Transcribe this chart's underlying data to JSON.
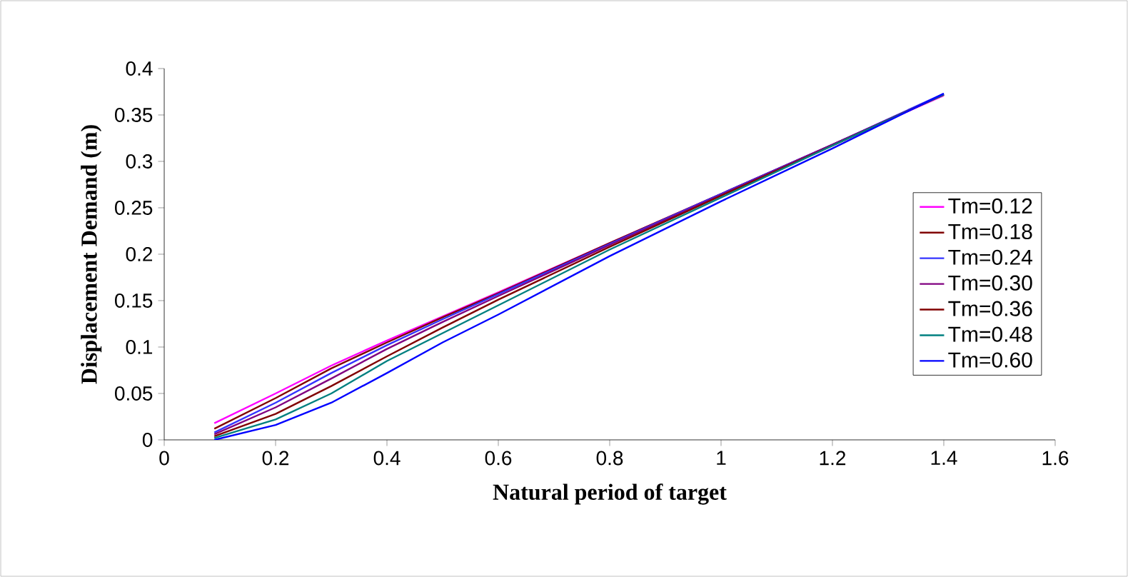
{
  "chart_data": {
    "type": "line",
    "xlabel": "Natural period of target",
    "ylabel": "Displacement Demand (m)",
    "x": [
      0.09,
      0.2,
      0.3,
      0.4,
      0.5,
      0.6,
      0.8,
      1.0,
      1.2,
      1.4
    ],
    "series": [
      {
        "name": "Tm=0.12",
        "color": "#ff00ff",
        "values": [
          0.018,
          0.05,
          0.08,
          0.107,
          0.133,
          0.159,
          0.212,
          0.265,
          0.318,
          0.371
        ]
      },
      {
        "name": "Tm=0.18",
        "color": "#800000",
        "values": [
          0.012,
          0.045,
          0.077,
          0.105,
          0.132,
          0.158,
          0.212,
          0.265,
          0.318,
          0.372
        ]
      },
      {
        "name": "Tm=0.24",
        "color": "#3333ff",
        "values": [
          0.008,
          0.04,
          0.072,
          0.102,
          0.13,
          0.157,
          0.211,
          0.265,
          0.318,
          0.373
        ]
      },
      {
        "name": "Tm=0.30",
        "color": "#800080",
        "values": [
          0.006,
          0.035,
          0.066,
          0.098,
          0.127,
          0.155,
          0.21,
          0.264,
          0.318,
          0.372
        ]
      },
      {
        "name": "Tm=0.36",
        "color": "#800000",
        "values": [
          0.004,
          0.028,
          0.058,
          0.09,
          0.121,
          0.151,
          0.208,
          0.263,
          0.317,
          0.372
        ]
      },
      {
        "name": "Tm=0.48",
        "color": "#008080",
        "values": [
          0.002,
          0.022,
          0.05,
          0.085,
          0.115,
          0.145,
          0.205,
          0.261,
          0.317,
          0.372
        ]
      },
      {
        "name": "Tm=0.60",
        "color": "#0000ff",
        "values": [
          0,
          0.016,
          0.04,
          0.072,
          0.105,
          0.135,
          0.198,
          0.257,
          0.314,
          0.373
        ]
      }
    ],
    "xlim": [
      0,
      1.6
    ],
    "xticks": [
      0,
      0.2,
      0.4,
      0.6,
      0.8,
      1,
      1.2,
      1.4,
      1.6
    ],
    "ylim": [
      0,
      0.4
    ],
    "yticks": [
      0,
      0.05,
      0.1,
      0.15,
      0.2,
      0.25,
      0.3,
      0.35,
      0.4
    ],
    "grid": false,
    "legend": "right",
    "marker": "none",
    "line_style": "solid"
  }
}
